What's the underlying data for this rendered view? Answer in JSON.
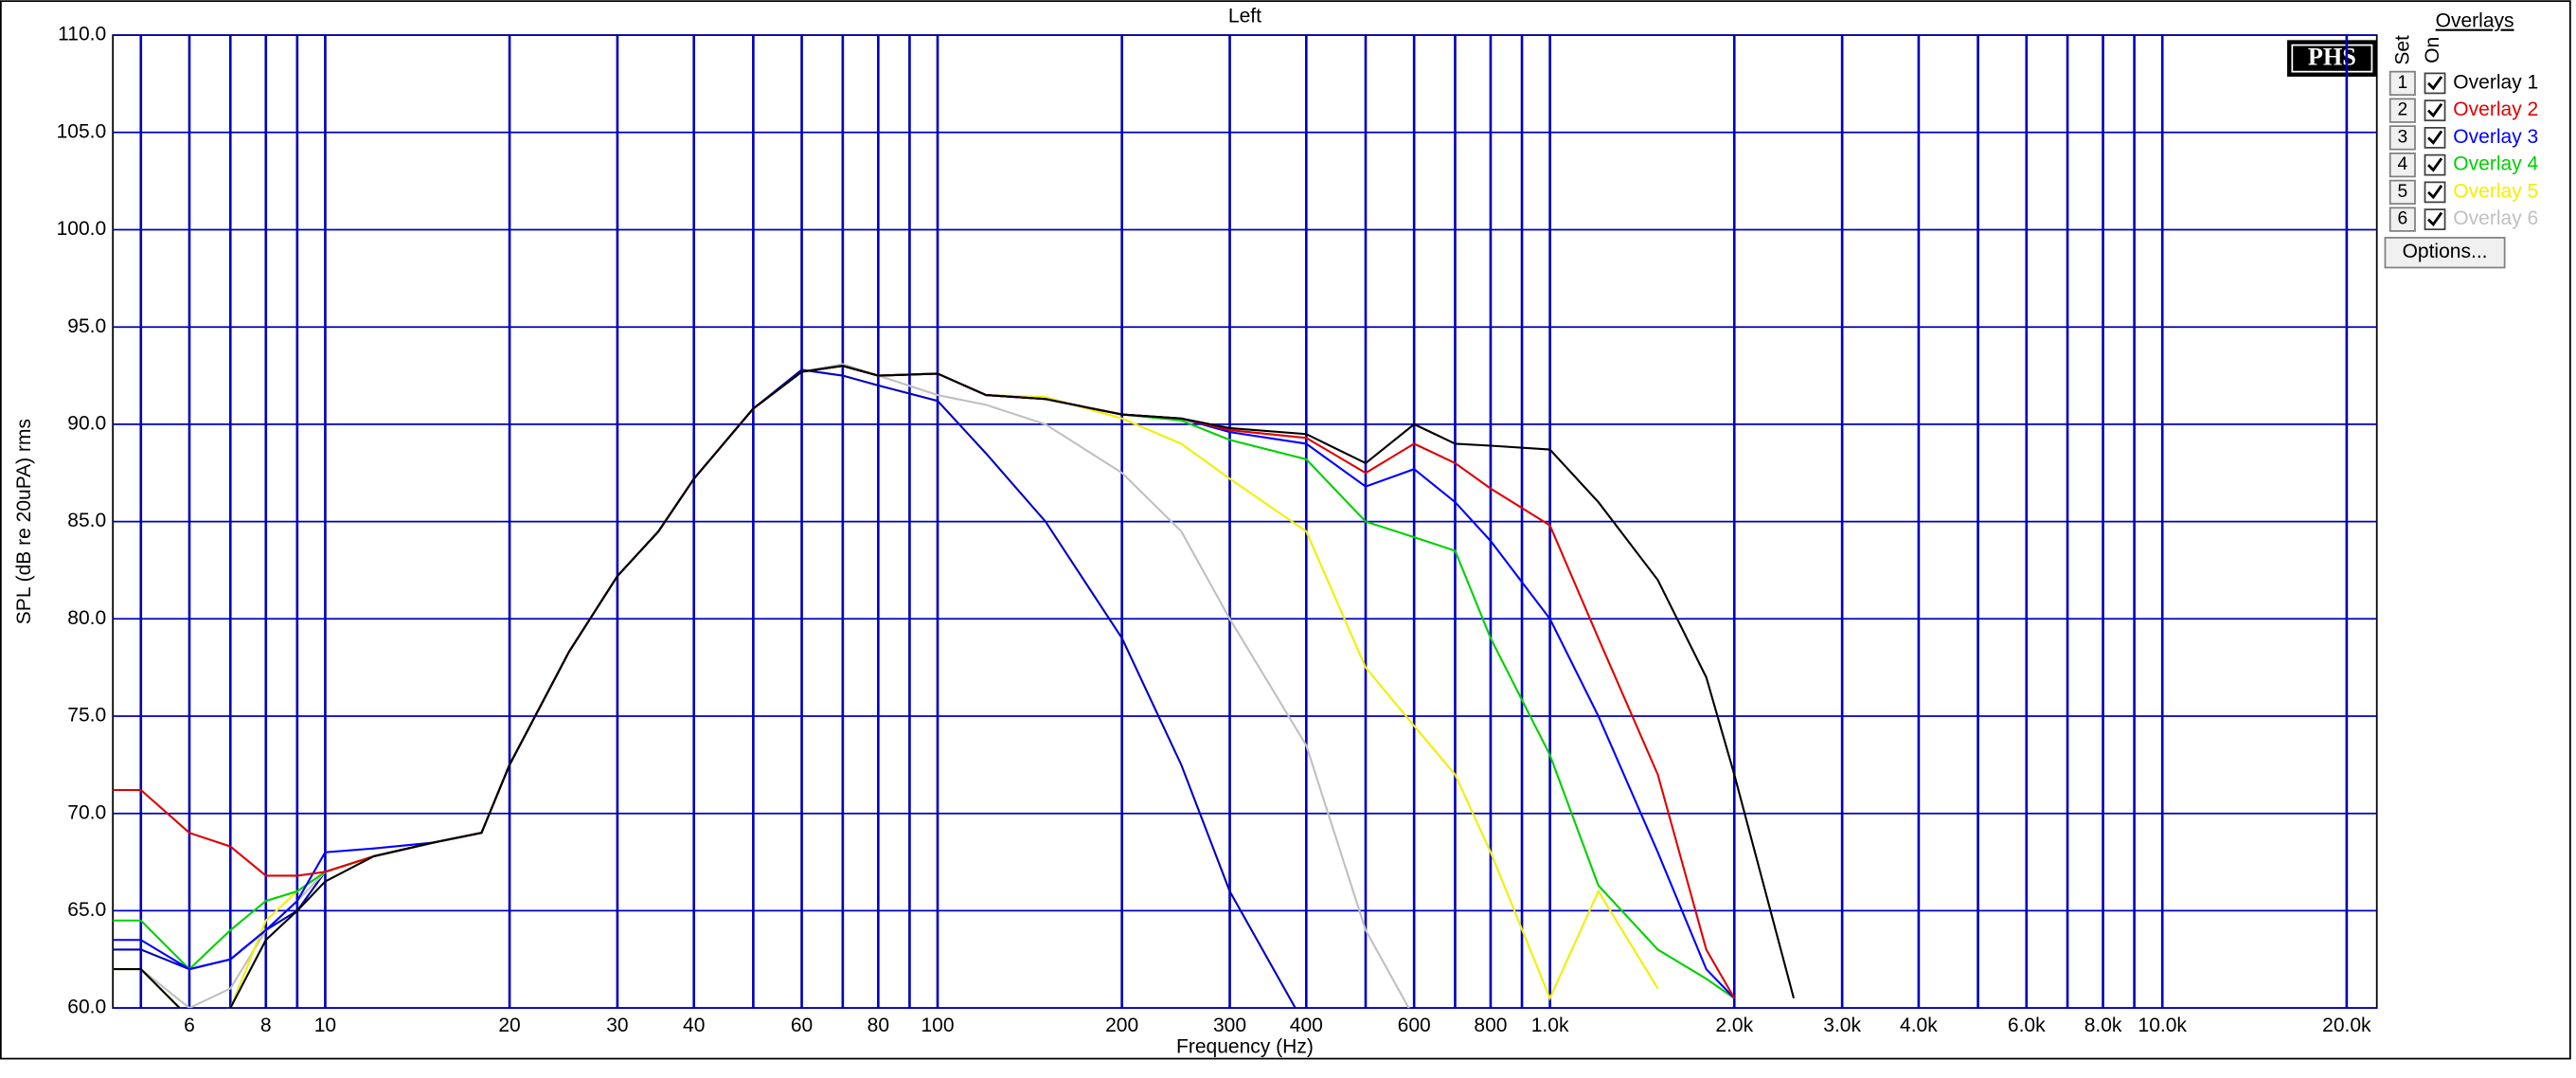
{
  "chart_data": {
    "type": "line",
    "title": "Left",
    "xlabel": "Frequency (Hz)",
    "ylabel": "SPL (dB re 20uPA) rms",
    "logo": "PHS",
    "legend_title": "Overlays",
    "legend_headers": [
      "Set",
      "On"
    ],
    "legend_numbers": [
      "1",
      "2",
      "3",
      "4",
      "5",
      "6"
    ],
    "options_button": "Options...",
    "xscale": "log",
    "grid": true,
    "grid_color": "#0000c0",
    "xlim": [
      4.5,
      22400
    ],
    "ylim": [
      60,
      110
    ],
    "yticks": [
      {
        "value": 60,
        "label": "60.0"
      },
      {
        "value": 65,
        "label": "65.0"
      },
      {
        "value": 70,
        "label": "70.0"
      },
      {
        "value": 75,
        "label": "75.0"
      },
      {
        "value": 80,
        "label": "80.0"
      },
      {
        "value": 85,
        "label": "85.0"
      },
      {
        "value": 90,
        "label": "90.0"
      },
      {
        "value": 95,
        "label": "95.0"
      },
      {
        "value": 100,
        "label": "100.0"
      },
      {
        "value": 105,
        "label": "105.0"
      },
      {
        "value": 110,
        "label": "110.0"
      }
    ],
    "xticks": [
      6,
      8,
      10,
      20,
      30,
      40,
      60,
      80,
      100,
      200,
      300,
      400,
      600,
      800,
      {
        "value": 1000,
        "label": "1.0k"
      },
      {
        "value": 2000,
        "label": "2.0k"
      },
      {
        "value": 3000,
        "label": "3.0k"
      },
      {
        "value": 4000,
        "label": "4.0k"
      },
      {
        "value": 6000,
        "label": "6.0k"
      },
      {
        "value": 8000,
        "label": "8.0k"
      },
      {
        "value": 10000,
        "label": "10.0k"
      },
      {
        "value": 20000,
        "label": "20.0k"
      }
    ],
    "xgrid_minor": [
      5,
      7,
      9,
      50,
      70,
      90,
      500,
      700,
      900,
      5000,
      7000,
      9000
    ],
    "x": [
      4.5,
      5,
      6,
      7,
      8,
      9,
      10,
      12,
      15,
      18,
      20,
      25,
      30,
      35,
      40,
      50,
      60,
      70,
      80,
      100,
      120,
      150,
      200,
      250,
      300,
      400,
      500,
      600,
      700,
      800,
      1000,
      1200,
      1500,
      1800,
      2000,
      2500
    ],
    "series": [
      {
        "name": "Overlay 1",
        "color": "#000000",
        "values": [
          62,
          62,
          59.5,
          60,
          63.5,
          65,
          66.5,
          67.8,
          68.5,
          69,
          72.5,
          78.3,
          82.2,
          84.5,
          87.2,
          90.8,
          92.7,
          93,
          92.5,
          92.6,
          91.5,
          91.3,
          90.5,
          90.3,
          89.8,
          89.5,
          88,
          90,
          89,
          88.9,
          88.7,
          86,
          82,
          77,
          72,
          60.5
        ]
      },
      {
        "name": "Overlay 2",
        "color": "#e00000",
        "values": [
          71.2,
          71.2,
          69,
          68.3,
          66.8,
          66.8,
          67,
          67.8,
          68.5,
          69,
          72.5,
          78.3,
          82.2,
          84.5,
          87.2,
          90.8,
          92.7,
          93,
          92.5,
          92.6,
          91.5,
          91.3,
          90.5,
          90.3,
          89.7,
          89.3,
          87.5,
          89,
          88,
          86.7,
          84.8,
          79,
          72,
          63,
          60.5,
          null
        ]
      },
      {
        "name": "Overlay 3",
        "color": "#0000ff",
        "values": [
          63.5,
          63.5,
          62,
          62.5,
          64,
          65.5,
          68,
          68.2,
          68.5,
          69,
          72.5,
          78.3,
          82.2,
          84.5,
          87.2,
          90.8,
          92.7,
          93,
          92.5,
          92.6,
          91.5,
          91.3,
          90.5,
          90.3,
          89.6,
          89,
          86.8,
          87.7,
          86,
          84,
          80,
          75,
          68,
          62,
          60.5,
          null
        ]
      },
      {
        "name": "Overlay 4",
        "color": "#00d000",
        "values": [
          64.5,
          64.5,
          62,
          64,
          65.5,
          66,
          67,
          67.8,
          68.5,
          69,
          72.5,
          78.3,
          82.2,
          84.5,
          87.2,
          90.8,
          92.7,
          93,
          92.5,
          92.6,
          91.5,
          91.3,
          90.5,
          90.2,
          89.2,
          88.2,
          85,
          84.2,
          83.5,
          79,
          73,
          66.3,
          63,
          61.5,
          60.5,
          null
        ]
      },
      {
        "name": "Overlay 5",
        "color": "#f0f000",
        "values": [
          62,
          62,
          59.5,
          60,
          64.5,
          66,
          67,
          67.8,
          68.5,
          69,
          72.5,
          78.3,
          82.2,
          84.5,
          87.2,
          90.8,
          92.7,
          93,
          92.5,
          92.6,
          91.5,
          91.4,
          90.3,
          89,
          87.2,
          84.5,
          77.5,
          74.5,
          72,
          68,
          60.5,
          66,
          61,
          null,
          null,
          null
        ]
      },
      {
        "name": "Overlay 6",
        "color": "#c0c0c0",
        "values": [
          62,
          62,
          60,
          61,
          64,
          65.5,
          67,
          67.8,
          68.5,
          69,
          72.5,
          78.3,
          82.2,
          84.5,
          87.2,
          90.8,
          92.7,
          93.1,
          92.5,
          91.5,
          91,
          90,
          87.5,
          84.5,
          80,
          73.5,
          64,
          59.5,
          null,
          null,
          null,
          null,
          null,
          null,
          null,
          null
        ]
      },
      {
        "color": "#0000c0",
        "values": [
          63,
          63,
          62,
          62.5,
          64,
          65,
          67,
          67.8,
          68.5,
          69,
          72.5,
          78.3,
          82.2,
          84.5,
          87.2,
          90.8,
          92.8,
          92.5,
          92,
          91.2,
          88.5,
          85,
          79,
          72.5,
          66,
          59,
          null,
          null,
          null,
          null,
          null,
          null,
          null,
          null,
          null,
          null
        ]
      }
    ]
  }
}
